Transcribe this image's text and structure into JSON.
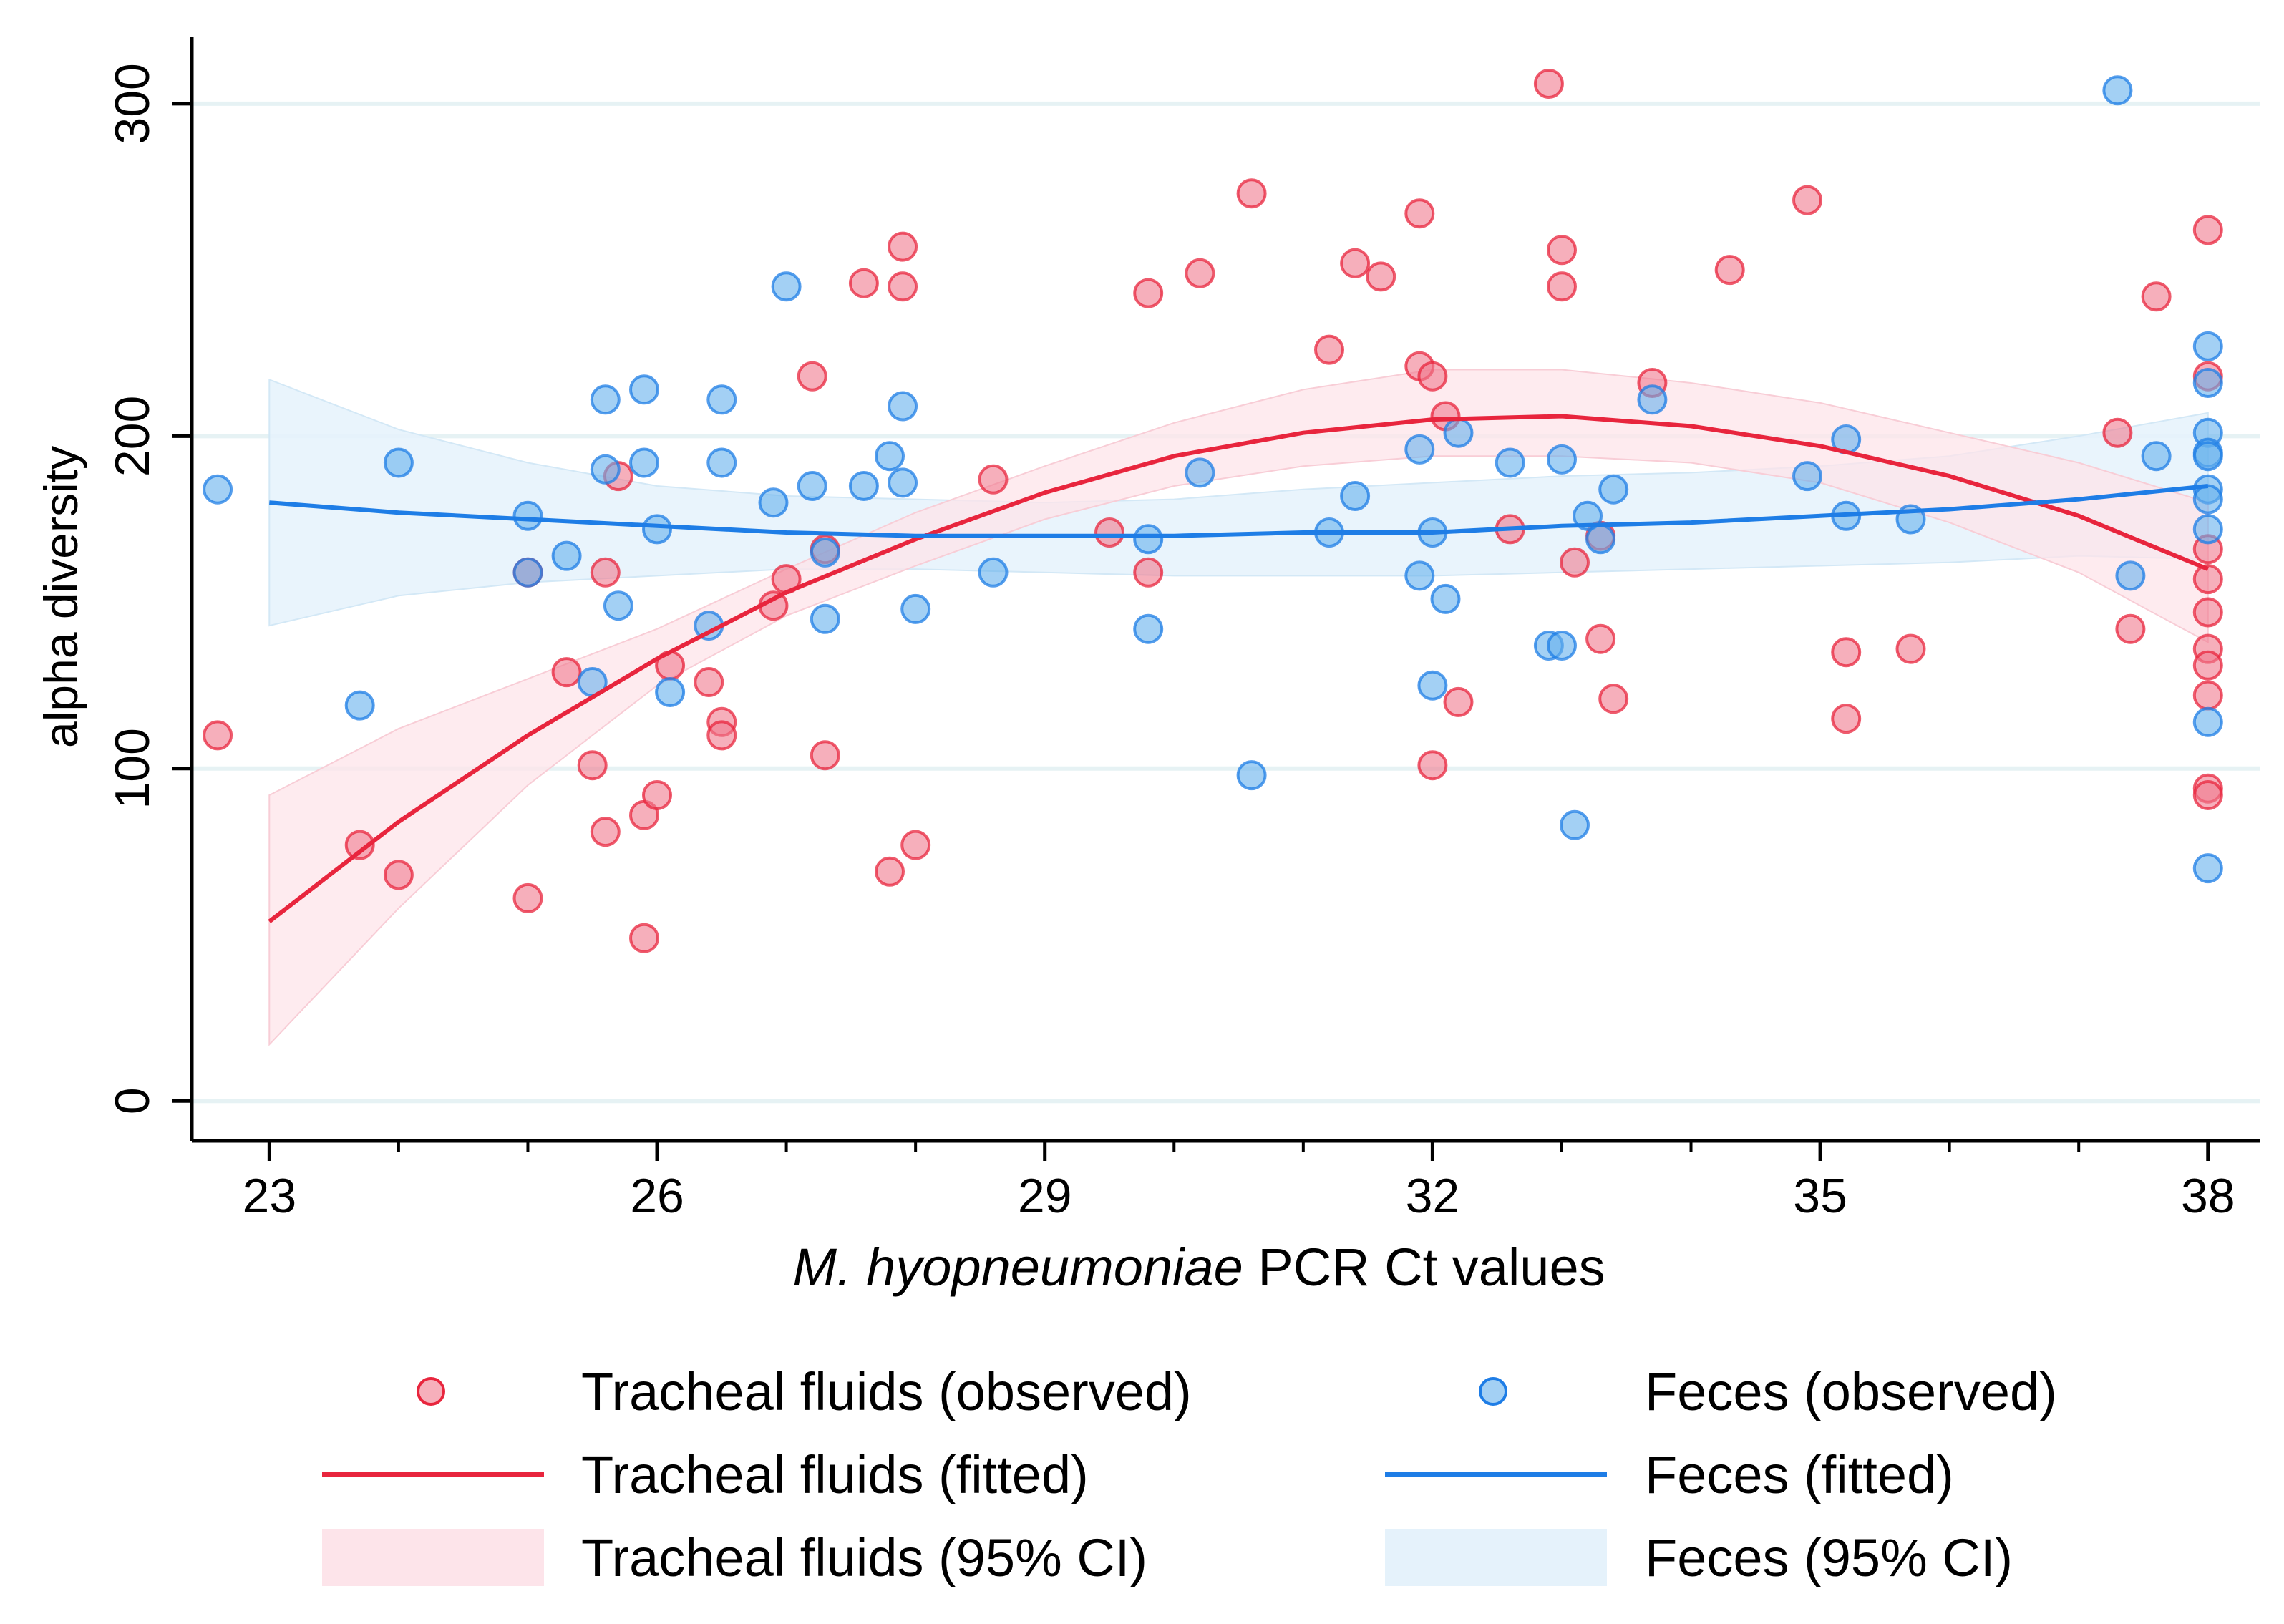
{
  "chart_data": {
    "type": "scatter",
    "title": "",
    "xlabel_italic": "M. hyopneumoniae",
    "xlabel_rest": " PCR Ct values",
    "ylabel": "alpha diversity",
    "xlim": [
      22.4,
      38.4
    ],
    "ylim": [
      -12,
      320
    ],
    "xticks": [
      23,
      26,
      29,
      32,
      35,
      38
    ],
    "xminor": [
      24,
      25,
      27,
      28,
      30,
      31,
      33,
      34,
      36,
      37
    ],
    "yticks": [
      0,
      100,
      200,
      300
    ],
    "grid": "horizontal",
    "legend_position": "bottom",
    "legend": [
      "Tracheal fluids (observed)",
      "Feces (observed)",
      "Tracheal fluids (fitted)",
      "Feces (fitted)",
      "Tracheal fluids (95% CI)",
      "Feces (95% CI)"
    ],
    "colors": {
      "tracheal": "#e8253d",
      "tracheal_point": "#f07a8d",
      "tracheal_ci": "#fde4ea",
      "feces": "#1e7de6",
      "feces_point": "#66b1ec",
      "feces_ci": "#e5f2fb",
      "gridline": "#e6f2f4"
    },
    "series": [
      {
        "name": "Tracheal fluids (observed)",
        "kind": "points",
        "x": [
          22.6,
          23.7,
          24.0,
          25.0,
          25.0,
          25.3,
          25.5,
          25.6,
          25.6,
          25.7,
          25.9,
          25.9,
          26.0,
          26.1,
          26.4,
          26.5,
          26.5,
          26.9,
          27.0,
          27.2,
          27.3,
          27.3,
          27.6,
          27.8,
          27.9,
          27.9,
          28.0,
          28.6,
          29.5,
          29.8,
          29.8,
          30.2,
          30.6,
          31.2,
          31.4,
          31.6,
          31.9,
          31.9,
          32.0,
          32.0,
          32.1,
          32.2,
          32.6,
          32.9,
          33.0,
          33.0,
          33.1,
          33.3,
          33.3,
          33.4,
          33.7,
          34.3,
          34.9,
          35.2,
          35.2,
          35.7,
          37.3,
          37.4,
          37.6,
          38.0,
          38.0,
          38.0,
          38.0,
          38.0,
          38.0,
          38.0,
          38.0,
          38.0,
          38.0
        ],
        "y": [
          110,
          77,
          68,
          61,
          159,
          129,
          101,
          159,
          81,
          188,
          49,
          86,
          92,
          131,
          126,
          114,
          110,
          149,
          157,
          218,
          166,
          104,
          246,
          69,
          257,
          245,
          77,
          187,
          171,
          243,
          159,
          249,
          273,
          226,
          252,
          248,
          267,
          221,
          218,
          101,
          206,
          120,
          172,
          306,
          256,
          245,
          162,
          170,
          139,
          121,
          216,
          250,
          271,
          135,
          115,
          136,
          201,
          142,
          242,
          262,
          218,
          166,
          157,
          147,
          136,
          131,
          122,
          94,
          92
        ]
      },
      {
        "name": "Feces (observed)",
        "kind": "points",
        "x": [
          22.6,
          23.7,
          24.0,
          25.0,
          25.0,
          25.3,
          25.5,
          25.6,
          25.6,
          25.7,
          25.9,
          25.9,
          26.0,
          26.1,
          26.4,
          26.5,
          26.5,
          26.9,
          27.0,
          27.2,
          27.3,
          27.3,
          27.6,
          27.8,
          27.9,
          27.9,
          28.0,
          28.6,
          29.8,
          29.8,
          30.2,
          30.6,
          31.2,
          31.4,
          31.9,
          31.9,
          32.0,
          32.0,
          32.1,
          32.2,
          32.6,
          32.9,
          33.0,
          33.0,
          33.1,
          33.2,
          33.3,
          33.4,
          33.7,
          34.9,
          35.2,
          35.2,
          35.7,
          37.3,
          37.4,
          37.6,
          38.0,
          38.0,
          38.0,
          38.0,
          38.0,
          38.0,
          38.0,
          38.0,
          38.0,
          38.0
        ],
        "y": [
          184,
          119,
          192,
          176,
          159,
          164,
          126,
          211,
          190,
          149,
          214,
          192,
          172,
          123,
          143,
          211,
          192,
          180,
          245,
          185,
          145,
          165,
          185,
          194,
          209,
          186,
          148,
          159,
          142,
          169,
          189,
          98,
          171,
          182,
          196,
          158,
          171,
          125,
          151,
          201,
          192,
          137,
          193,
          137,
          83,
          176,
          169,
          184,
          211,
          188,
          199,
          176,
          175,
          304,
          158,
          194,
          227,
          216,
          201,
          195,
          194,
          184,
          181,
          172,
          114,
          70
        ]
      },
      {
        "name": "Tracheal fluids (fitted)",
        "kind": "line",
        "x": [
          23,
          24,
          25,
          26,
          27,
          28,
          29,
          30,
          31,
          32,
          33,
          34,
          35,
          36,
          37,
          38
        ],
        "y": [
          54,
          84,
          110,
          133,
          153,
          169,
          183,
          194,
          201,
          205,
          206,
          203,
          197,
          188,
          176,
          160
        ],
        "ci_low": [
          17,
          58,
          95,
          125,
          146,
          161,
          175,
          185,
          191,
          194,
          194,
          192,
          186,
          174,
          159,
          138
        ],
        "ci_high": [
          92,
          112,
          127,
          142,
          160,
          177,
          191,
          204,
          214,
          220,
          220,
          216,
          210,
          201,
          192,
          180
        ]
      },
      {
        "name": "Feces (fitted)",
        "kind": "line",
        "x": [
          23,
          24,
          25,
          26,
          27,
          28,
          29,
          30,
          31,
          32,
          33,
          34,
          35,
          36,
          37,
          38
        ],
        "y": [
          180,
          177,
          175,
          173,
          171,
          170,
          170,
          170,
          171,
          171,
          173,
          174,
          176,
          178,
          181,
          185
        ],
        "ci_low": [
          143,
          152,
          156,
          158,
          160,
          160,
          159,
          158,
          158,
          158,
          159,
          160,
          161,
          162,
          164,
          163
        ],
        "ci_high": [
          217,
          202,
          192,
          185,
          182,
          181,
          180,
          181,
          184,
          186,
          188,
          189,
          191,
          194,
          200,
          207
        ]
      }
    ]
  }
}
